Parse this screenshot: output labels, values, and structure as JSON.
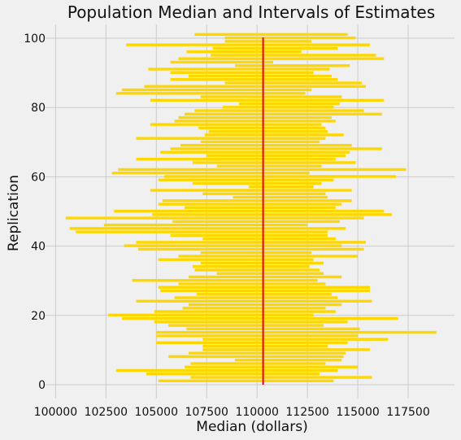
{
  "chart_data": {
    "type": "interval",
    "title": "Population Median and Intervals of Estimates",
    "xlabel": "Median (dollars)",
    "ylabel": "Replication",
    "xlim": [
      99500,
      119800
    ],
    "ylim": [
      -4,
      104
    ],
    "xticks": [
      100000,
      102500,
      105000,
      107500,
      110000,
      112500,
      115000,
      117500
    ],
    "xtick_labels": [
      "100000",
      "102500",
      "105000",
      "107500",
      "110000",
      "112500",
      "115000",
      "117500"
    ],
    "yticks": [
      0,
      20,
      40,
      60,
      80,
      100
    ],
    "ytick_labels": [
      "0",
      "20",
      "40",
      "60",
      "80",
      "100"
    ],
    "grid": true,
    "bar_color": "#ffd700",
    "median_line": {
      "value": 110300,
      "color": "#e8000b"
    },
    "intervals": [
      [
        105100,
        113800
      ],
      [
        106700,
        115700
      ],
      [
        104500,
        113100
      ],
      [
        103000,
        114000
      ],
      [
        106400,
        115000
      ],
      [
        106700,
        113400
      ],
      [
        108900,
        114200
      ],
      [
        105600,
        114300
      ],
      [
        106600,
        114400
      ],
      [
        107300,
        115600
      ],
      [
        107300,
        113500
      ],
      [
        105000,
        114500
      ],
      [
        107300,
        116500
      ],
      [
        105000,
        115000
      ],
      [
        105000,
        118900
      ],
      [
        106500,
        115100
      ],
      [
        105600,
        113300
      ],
      [
        104900,
        114500
      ],
      [
        103300,
        117000
      ],
      [
        102600,
        112800
      ],
      [
        104900,
        113900
      ],
      [
        106300,
        113400
      ],
      [
        106600,
        114200
      ],
      [
        104000,
        115700
      ],
      [
        105900,
        114000
      ],
      [
        107000,
        113700
      ],
      [
        105200,
        115600
      ],
      [
        105100,
        115600
      ],
      [
        106100,
        113400
      ],
      [
        103800,
        113000
      ],
      [
        106600,
        114200
      ],
      [
        108000,
        113300
      ],
      [
        106900,
        113100
      ],
      [
        106800,
        112600
      ],
      [
        107200,
        113300
      ],
      [
        105100,
        112800
      ],
      [
        106100,
        115000
      ],
      [
        107200,
        112700
      ],
      [
        104100,
        115300
      ],
      [
        103400,
        114200
      ],
      [
        104000,
        115400
      ],
      [
        107300,
        113900
      ],
      [
        105700,
        113500
      ],
      [
        101000,
        113500
      ],
      [
        100700,
        114400
      ],
      [
        102400,
        112500
      ],
      [
        105800,
        114100
      ],
      [
        100500,
        115300
      ],
      [
        104800,
        116700
      ],
      [
        102900,
        116300
      ],
      [
        106400,
        113900
      ],
      [
        105100,
        114200
      ],
      [
        105300,
        114700
      ],
      [
        108800,
        113500
      ],
      [
        107300,
        113400
      ],
      [
        104700,
        114700
      ],
      [
        109600,
        112800
      ],
      [
        106800,
        113200
      ],
      [
        105100,
        113800
      ],
      [
        105400,
        116900
      ],
      [
        102800,
        112600
      ],
      [
        103100,
        117400
      ],
      [
        108000,
        113200
      ],
      [
        106800,
        114900
      ],
      [
        104000,
        113900
      ],
      [
        107500,
        114400
      ],
      [
        105200,
        114600
      ],
      [
        105700,
        116200
      ],
      [
        106200,
        114700
      ],
      [
        107200,
        113100
      ],
      [
        104000,
        113400
      ],
      [
        107400,
        114300
      ],
      [
        107600,
        113500
      ],
      [
        107100,
        113400
      ],
      [
        104700,
        113200
      ],
      [
        105900,
        113900
      ],
      [
        106100,
        113700
      ],
      [
        106400,
        116200
      ],
      [
        106900,
        115300
      ],
      [
        108300,
        113800
      ],
      [
        109100,
        114100
      ],
      [
        104700,
        116300
      ],
      [
        107200,
        114200
      ],
      [
        103000,
        112400
      ],
      [
        103300,
        112700
      ],
      [
        104400,
        115400
      ],
      [
        108400,
        115200
      ],
      [
        105700,
        114000
      ],
      [
        106600,
        113700
      ],
      [
        105700,
        112800
      ],
      [
        104600,
        113600
      ],
      [
        108900,
        114600
      ],
      [
        105700,
        110800
      ],
      [
        106100,
        116300
      ],
      [
        107700,
        115900
      ],
      [
        106500,
        112200
      ],
      [
        107800,
        114000
      ],
      [
        103500,
        115600
      ],
      [
        108400,
        112700
      ],
      [
        108400,
        114900
      ],
      [
        106900,
        114500
      ]
    ]
  }
}
